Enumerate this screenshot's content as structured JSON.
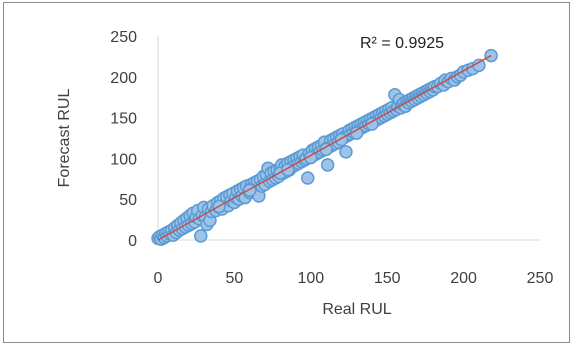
{
  "chart_data": {
    "type": "scatter",
    "title": "",
    "xlabel": "Real RUL",
    "ylabel": "Forecast RUL",
    "xlim": [
      0,
      250
    ],
    "ylim": [
      0,
      250
    ],
    "x_ticks": [
      "0",
      "50",
      "100",
      "150",
      "200",
      "250"
    ],
    "y_ticks": [
      "0",
      "50",
      "100",
      "150",
      "200",
      "250"
    ],
    "grid": false,
    "legend": "none",
    "annotation": "R² = 0.9925",
    "trendline": {
      "type": "linear",
      "from": [
        0,
        0
      ],
      "to": [
        218,
        226
      ],
      "color": "#c0504d"
    },
    "marker": {
      "fill": "#9dc3e6",
      "stroke": "#5b9bd5"
    },
    "series": [
      {
        "points": [
          [
            0,
            2
          ],
          [
            1,
            4
          ],
          [
            2,
            1
          ],
          [
            3,
            6
          ],
          [
            4,
            3
          ],
          [
            5,
            8
          ],
          [
            6,
            5
          ],
          [
            7,
            10
          ],
          [
            8,
            7
          ],
          [
            9,
            12
          ],
          [
            10,
            6
          ],
          [
            11,
            15
          ],
          [
            12,
            9
          ],
          [
            13,
            18
          ],
          [
            14,
            12
          ],
          [
            15,
            21
          ],
          [
            16,
            14
          ],
          [
            17,
            24
          ],
          [
            18,
            16
          ],
          [
            19,
            27
          ],
          [
            20,
            18
          ],
          [
            21,
            30
          ],
          [
            22,
            20
          ],
          [
            23,
            33
          ],
          [
            24,
            22
          ],
          [
            25,
            28
          ],
          [
            26,
            36
          ],
          [
            27,
            26
          ],
          [
            28,
            5
          ],
          [
            29,
            30
          ],
          [
            30,
            40
          ],
          [
            31,
            28
          ],
          [
            32,
            19
          ],
          [
            33,
            38
          ],
          [
            34,
            24
          ],
          [
            35,
            35
          ],
          [
            36,
            42
          ],
          [
            38,
            36
          ],
          [
            39,
            46
          ],
          [
            40,
            40
          ],
          [
            41,
            48
          ],
          [
            42,
            38
          ],
          [
            43,
            51
          ],
          [
            44,
            44
          ],
          [
            45,
            53
          ],
          [
            46,
            42
          ],
          [
            47,
            55
          ],
          [
            48,
            48
          ],
          [
            49,
            57
          ],
          [
            50,
            46
          ],
          [
            51,
            52
          ],
          [
            52,
            60
          ],
          [
            53,
            50
          ],
          [
            54,
            62
          ],
          [
            55,
            54
          ],
          [
            56,
            64
          ],
          [
            57,
            52
          ],
          [
            58,
            66
          ],
          [
            60,
            58
          ],
          [
            61,
            68
          ],
          [
            62,
            60
          ],
          [
            63,
            70
          ],
          [
            64,
            62
          ],
          [
            65,
            72
          ],
          [
            66,
            54
          ],
          [
            67,
            74
          ],
          [
            68,
            66
          ],
          [
            69,
            78
          ],
          [
            70,
            68
          ],
          [
            71,
            80
          ],
          [
            72,
            88
          ],
          [
            73,
            72
          ],
          [
            74,
            82
          ],
          [
            75,
            74
          ],
          [
            76,
            84
          ],
          [
            77,
            76
          ],
          [
            78,
            86
          ],
          [
            79,
            78
          ],
          [
            80,
            88
          ],
          [
            81,
            92
          ],
          [
            82,
            82
          ],
          [
            83,
            90
          ],
          [
            84,
            84
          ],
          [
            85,
            94
          ],
          [
            86,
            86
          ],
          [
            87,
            96
          ],
          [
            88,
            90
          ],
          [
            89,
            98
          ],
          [
            90,
            92
          ],
          [
            91,
            100
          ],
          [
            92,
            94
          ],
          [
            93,
            102
          ],
          [
            94,
            96
          ],
          [
            95,
            104
          ],
          [
            96,
            98
          ],
          [
            97,
            100
          ],
          [
            98,
            76
          ],
          [
            99,
            106
          ],
          [
            100,
            102
          ],
          [
            101,
            110
          ],
          [
            102,
            104
          ],
          [
            103,
            112
          ],
          [
            104,
            106
          ],
          [
            105,
            114
          ],
          [
            106,
            108
          ],
          [
            107,
            116
          ],
          [
            108,
            110
          ],
          [
            109,
            120
          ],
          [
            110,
            112
          ],
          [
            111,
            92
          ],
          [
            112,
            114
          ],
          [
            113,
            122
          ],
          [
            114,
            116
          ],
          [
            115,
            124
          ],
          [
            116,
            118
          ],
          [
            117,
            126
          ],
          [
            118,
            120
          ],
          [
            119,
            128
          ],
          [
            120,
            124
          ],
          [
            121,
            130
          ],
          [
            122,
            126
          ],
          [
            123,
            108
          ],
          [
            124,
            128
          ],
          [
            125,
            134
          ],
          [
            126,
            130
          ],
          [
            127,
            136
          ],
          [
            128,
            132
          ],
          [
            129,
            138
          ],
          [
            130,
            134
          ],
          [
            131,
            140
          ],
          [
            132,
            136
          ],
          [
            133,
            142
          ],
          [
            134,
            138
          ],
          [
            135,
            144
          ],
          [
            136,
            140
          ],
          [
            137,
            146
          ],
          [
            138,
            142
          ],
          [
            139,
            148
          ],
          [
            140,
            144
          ],
          [
            141,
            150
          ],
          [
            142,
            146
          ],
          [
            143,
            152
          ],
          [
            144,
            148
          ],
          [
            145,
            154
          ],
          [
            146,
            150
          ],
          [
            147,
            156
          ],
          [
            148,
            152
          ],
          [
            149,
            158
          ],
          [
            150,
            154
          ],
          [
            151,
            160
          ],
          [
            152,
            156
          ],
          [
            153,
            162
          ],
          [
            154,
            158
          ],
          [
            155,
            178
          ],
          [
            156,
            160
          ],
          [
            157,
            164
          ],
          [
            158,
            172
          ],
          [
            159,
            162
          ],
          [
            160,
            166
          ],
          [
            161,
            168
          ],
          [
            162,
            164
          ],
          [
            163,
            170
          ],
          [
            164,
            168
          ],
          [
            165,
            172
          ],
          [
            166,
            170
          ],
          [
            167,
            174
          ],
          [
            168,
            172
          ],
          [
            169,
            176
          ],
          [
            170,
            174
          ],
          [
            171,
            178
          ],
          [
            172,
            176
          ],
          [
            173,
            180
          ],
          [
            174,
            178
          ],
          [
            175,
            182
          ],
          [
            176,
            180
          ],
          [
            177,
            184
          ],
          [
            178,
            182
          ],
          [
            179,
            186
          ],
          [
            180,
            184
          ],
          [
            181,
            188
          ],
          [
            183,
            188
          ],
          [
            185,
            192
          ],
          [
            187,
            190
          ],
          [
            188,
            196
          ],
          [
            190,
            194
          ],
          [
            192,
            198
          ],
          [
            194,
            196
          ],
          [
            196,
            200
          ],
          [
            198,
            202
          ],
          [
            200,
            206
          ],
          [
            203,
            208
          ],
          [
            206,
            210
          ],
          [
            210,
            214
          ],
          [
            218,
            226
          ],
          [
            40,
            41
          ],
          [
            60,
            62
          ],
          [
            80,
            82
          ],
          [
            100,
            101
          ],
          [
            120,
            123
          ],
          [
            140,
            142
          ],
          [
            60,
            61
          ],
          [
            85,
            86
          ],
          [
            110,
            111
          ],
          [
            130,
            131
          ]
        ]
      }
    ]
  }
}
